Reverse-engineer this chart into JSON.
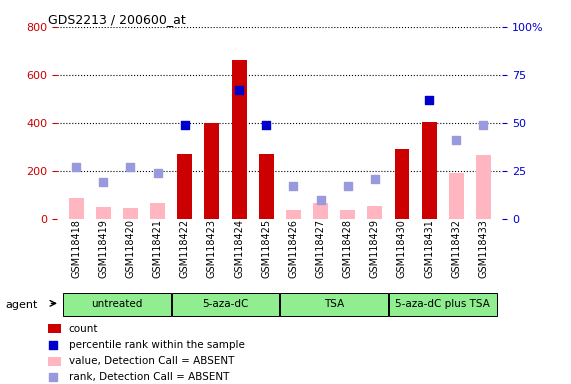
{
  "title": "GDS2213 / 200600_at",
  "samples": [
    "GSM118418",
    "GSM118419",
    "GSM118420",
    "GSM118421",
    "GSM118422",
    "GSM118423",
    "GSM118424",
    "GSM118425",
    "GSM118426",
    "GSM118427",
    "GSM118428",
    "GSM118429",
    "GSM118430",
    "GSM118431",
    "GSM118432",
    "GSM118433"
  ],
  "count_present": [
    null,
    null,
    null,
    null,
    270,
    400,
    660,
    270,
    null,
    null,
    null,
    null,
    290,
    405,
    null,
    null
  ],
  "count_absent": [
    85,
    50,
    45,
    65,
    null,
    null,
    null,
    null,
    35,
    65,
    35,
    55,
    null,
    null,
    190,
    265
  ],
  "rank_present_pct": [
    null,
    null,
    null,
    null,
    49,
    null,
    67,
    49,
    null,
    null,
    null,
    null,
    null,
    62,
    null,
    null
  ],
  "rank_absent_pct": [
    27,
    19,
    27,
    24,
    null,
    null,
    null,
    null,
    17,
    10,
    17,
    21,
    null,
    null,
    41,
    49
  ],
  "groups": [
    {
      "label": "untreated",
      "start": 0,
      "end": 3
    },
    {
      "label": "5-aza-dC",
      "start": 4,
      "end": 7
    },
    {
      "label": "TSA",
      "start": 8,
      "end": 11
    },
    {
      "label": "5-aza-dC plus TSA",
      "start": 12,
      "end": 15
    }
  ],
  "ylim_left": [
    0,
    800
  ],
  "ylim_right": [
    0,
    100
  ],
  "left_ticks": [
    0,
    200,
    400,
    600,
    800
  ],
  "right_ticks": [
    0,
    25,
    50,
    75,
    100
  ],
  "left_color": "#cc0000",
  "right_color": "#0000cc",
  "bar_color_present": "#cc0000",
  "bar_color_absent": "#ffb6c1",
  "dot_color_present": "#0000cc",
  "dot_color_absent": "#9999dd",
  "bg_color": "#ffffff",
  "group_color": "#90EE90",
  "bar_width": 0.55,
  "dot_size": 40
}
